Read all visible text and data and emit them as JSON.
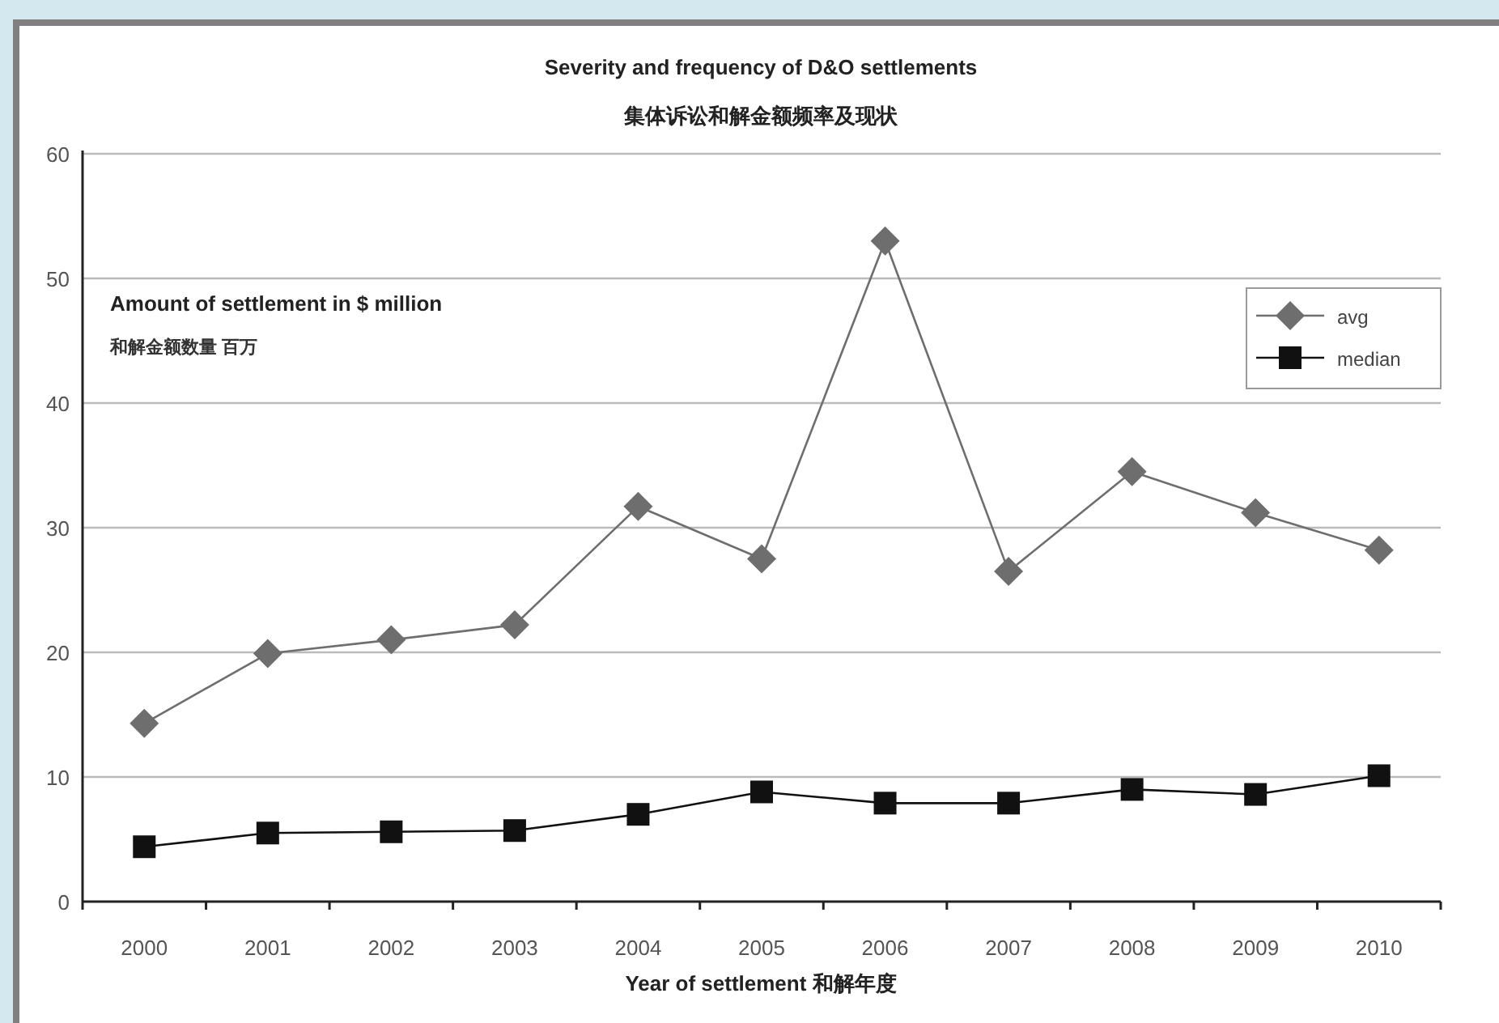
{
  "chart_data": {
    "type": "line",
    "title": "Severity and frequency of D&O settlements",
    "subtitle": "集体诉讼和解金额频率及现状",
    "xlabel": "Year of settlement  和解年度",
    "ylabel": "Amount of settlement in $ million",
    "annotations": [
      "和解金额数量 百万"
    ],
    "categories": [
      "2000",
      "2001",
      "2002",
      "2003",
      "2004",
      "2005",
      "2006",
      "2007",
      "2008",
      "2009",
      "2010"
    ],
    "series": [
      {
        "name": "avg",
        "color": "#6e6e6e",
        "marker": "diamond",
        "values": [
          14.3,
          19.9,
          21.0,
          22.2,
          31.7,
          27.5,
          53.0,
          26.5,
          34.5,
          31.2,
          28.2
        ]
      },
      {
        "name": "median",
        "color": "#111111",
        "marker": "square",
        "values": [
          4.4,
          5.5,
          5.6,
          5.7,
          7.0,
          8.8,
          7.9,
          7.9,
          9.0,
          8.6,
          10.1
        ]
      }
    ],
    "ylim": [
      0,
      60
    ],
    "yticks": [
      0,
      10,
      20,
      30,
      40,
      50,
      60
    ],
    "grid": "y",
    "legend": "top right"
  }
}
